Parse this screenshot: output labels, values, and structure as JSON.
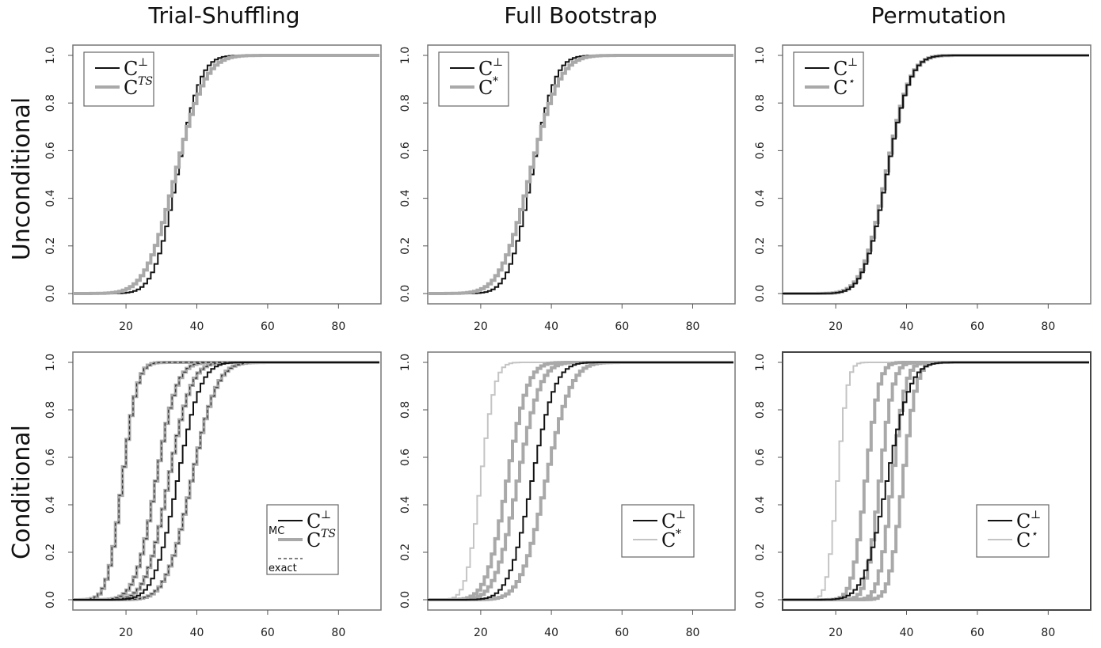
{
  "column_titles": [
    "Trial-Shuffling",
    "Full Bootstrap",
    "Permutation"
  ],
  "row_titles": [
    "Unconditional",
    "Conditional"
  ],
  "colors": {
    "black": "#111111",
    "gray": "#a9a9a9",
    "lightgray": "#c4c4c4"
  },
  "chart_data": [
    {
      "type": "line",
      "row": "Unconditional",
      "column": "Trial-Shuffling",
      "xlim": [
        5,
        92
      ],
      "ylim": [
        0,
        1
      ],
      "xticks": [
        "20",
        "40",
        "60",
        "80"
      ],
      "yticks": [
        "0.0",
        "0.2",
        "0.4",
        "0.6",
        "0.8",
        "1.0"
      ],
      "legend": {
        "position": "top-left",
        "entries": [
          {
            "symbol": "C",
            "sup": "⊥",
            "style": "black"
          },
          {
            "symbol": "C",
            "sup": "TS",
            "style": "gray"
          }
        ]
      },
      "series": [
        {
          "style": "black",
          "mu": 34.0,
          "s": 5.2
        },
        {
          "style": "gray",
          "mu": 33.5,
          "s": 6.6
        }
      ]
    },
    {
      "type": "line",
      "row": "Unconditional",
      "column": "Full Bootstrap",
      "xlim": [
        5,
        92
      ],
      "ylim": [
        0,
        1
      ],
      "xticks": [
        "20",
        "40",
        "60",
        "80"
      ],
      "yticks": [
        "0.0",
        "0.2",
        "0.4",
        "0.6",
        "0.8",
        "1.0"
      ],
      "legend": {
        "position": "top-left",
        "entries": [
          {
            "symbol": "C",
            "sup": "⊥",
            "style": "black"
          },
          {
            "symbol": "C",
            "sup": "*",
            "style": "gray"
          }
        ]
      },
      "series": [
        {
          "style": "black",
          "mu": 34.0,
          "s": 5.2
        },
        {
          "style": "gray",
          "mu": 33.5,
          "s": 6.6
        }
      ]
    },
    {
      "type": "line",
      "row": "Unconditional",
      "column": "Permutation",
      "xlim": [
        5,
        92
      ],
      "ylim": [
        0,
        1
      ],
      "xticks": [
        "20",
        "40",
        "60",
        "80"
      ],
      "yticks": [
        "0.0",
        "0.2",
        "0.4",
        "0.6",
        "0.8",
        "1.0"
      ],
      "legend": {
        "position": "top-left",
        "entries": [
          {
            "symbol": "C",
            "sup": "⊥",
            "style": "black"
          },
          {
            "symbol": "C",
            "sup": "⋆",
            "style": "gray"
          }
        ]
      },
      "series": [
        {
          "style": "gray",
          "mu": 33.8,
          "s": 5.3
        },
        {
          "style": "black",
          "mu": 34.0,
          "s": 5.2
        }
      ]
    },
    {
      "type": "line",
      "row": "Conditional",
      "column": "Trial-Shuffling",
      "xlim": [
        5,
        92
      ],
      "ylim": [
        0,
        1
      ],
      "xticks": [
        "20",
        "40",
        "60",
        "80"
      ],
      "yticks": [
        "0.0",
        "0.2",
        "0.4",
        "0.6",
        "0.8",
        "1.0"
      ],
      "legend": {
        "position": "bottom-right",
        "entries": [
          {
            "symbol": "C",
            "sup": "⊥",
            "style": "black"
          },
          {
            "symbol": "C",
            "sup": "TS",
            "style": "gray",
            "label": "MC"
          },
          {
            "symbol": "",
            "sup": "",
            "style": "dashed",
            "label": "exact"
          }
        ]
      },
      "series": [
        {
          "style": "gray",
          "mu": 18.5,
          "s": 3.3
        },
        {
          "style": "gray",
          "mu": 28.0,
          "s": 4.6
        },
        {
          "style": "gray",
          "mu": 31.5,
          "s": 5.0
        },
        {
          "style": "gray",
          "mu": 38.0,
          "s": 5.6
        },
        {
          "style": "dashed",
          "mu": 18.5,
          "s": 3.3
        },
        {
          "style": "dashed",
          "mu": 28.0,
          "s": 4.6
        },
        {
          "style": "dashed",
          "mu": 31.5,
          "s": 5.0
        },
        {
          "style": "dashed",
          "mu": 38.0,
          "s": 5.6
        },
        {
          "style": "black",
          "mu": 34.0,
          "s": 5.2
        }
      ]
    },
    {
      "type": "line",
      "row": "Conditional",
      "column": "Full Bootstrap",
      "xlim": [
        5,
        92
      ],
      "ylim": [
        0,
        1
      ],
      "xticks": [
        "20",
        "40",
        "60",
        "80"
      ],
      "yticks": [
        "0.0",
        "0.2",
        "0.4",
        "0.6",
        "0.8",
        "1.0"
      ],
      "legend": {
        "position": "bottom-right",
        "entries": [
          {
            "symbol": "C",
            "sup": "⊥",
            "style": "black"
          },
          {
            "symbol": "C",
            "sup": "*",
            "style": "lightgray"
          }
        ]
      },
      "series": [
        {
          "style": "lightgray",
          "mu": 19.5,
          "s": 3.2
        },
        {
          "style": "gray",
          "mu": 27.0,
          "s": 4.6
        },
        {
          "style": "gray",
          "mu": 30.0,
          "s": 5.0
        },
        {
          "style": "gray",
          "mu": 38.0,
          "s": 5.6
        },
        {
          "style": "black",
          "mu": 34.0,
          "s": 5.2
        }
      ]
    },
    {
      "type": "line",
      "row": "Conditional",
      "column": "Permutation",
      "xlim": [
        5,
        92
      ],
      "ylim": [
        0,
        1
      ],
      "xticks": [
        "20",
        "40",
        "60",
        "80"
      ],
      "yticks": [
        "0.0",
        "0.2",
        "0.4",
        "0.6",
        "0.8",
        "1.0"
      ],
      "legend": {
        "position": "bottom-right",
        "entries": [
          {
            "symbol": "C",
            "sup": "⊥",
            "style": "black"
          },
          {
            "symbol": "C",
            "sup": "⋆",
            "style": "lightgray"
          }
        ]
      },
      "series": [
        {
          "style": "lightgray",
          "mu": 20.0,
          "s": 2.3
        },
        {
          "style": "gray",
          "mu": 28.0,
          "s": 3.0
        },
        {
          "style": "gray",
          "mu": 32.0,
          "s": 3.0
        },
        {
          "style": "gray",
          "mu": 35.5,
          "s": 3.0
        },
        {
          "style": "gray",
          "mu": 38.5,
          "s": 3.0
        },
        {
          "style": "black",
          "mu": 34.0,
          "s": 5.2
        }
      ]
    }
  ]
}
